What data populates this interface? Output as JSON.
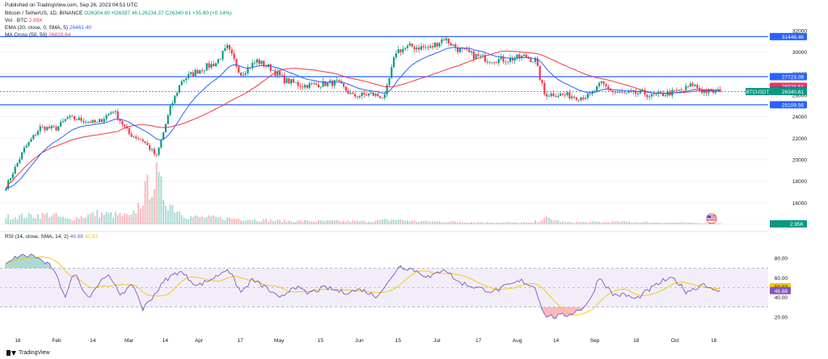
{
  "header": {
    "published": "Published on TradingView.com, Sep 26, 2023 04:51 UTC",
    "symbol": "Bitcoin / TetherUS, 1D, BINANCE",
    "ohlc": "O26304.80 H26397.46 L26234.37 C26340.61 +35.80 (+0.14%)",
    "vol_label": "Vol · BTC",
    "vol_value": "2.95K",
    "ema_label": "EMA (20, close, 0, SMA, 5)",
    "ema_value": "26461.40",
    "ma_label": "MA Cross (50, 50)",
    "ma_value": "26828.64",
    "rsi_label": "RSI (14, close, SMA, 14, 2)",
    "rsi_value": "46.88",
    "rsi_sma_value": "50.83"
  },
  "footer": {
    "brand": "TradingView"
  },
  "colors": {
    "up": "#089981",
    "down": "#f23645",
    "ema": "#2962ff",
    "ma": "#f23645",
    "hline": "#2962ff",
    "rsi": "#7e57c2",
    "rsi_sma": "#f7c600",
    "rsi_band": "#7e57c2"
  },
  "chart_data": {
    "type": "candlestick",
    "price_ylim": [
      14000,
      32600
    ],
    "price_ticks": [
      14000,
      16000,
      18000,
      20000,
      22000,
      24000,
      26000,
      28000,
      30000,
      32000
    ],
    "horizontal_lines": [
      31446.46,
      27723.08,
      25109.56
    ],
    "price_labels": [
      {
        "text": "31446.46",
        "value": 31446.46,
        "color": "#2962ff"
      },
      {
        "text": "27723.08",
        "value": 27723.08,
        "color": "#2962ff"
      },
      {
        "text": "26828.64",
        "value": 26828.64,
        "color": "#f23645"
      },
      {
        "text": "26461.40",
        "value": 26461.4,
        "color": "#2962ff"
      },
      {
        "text": "26340.61",
        "value": 26340.61,
        "color": "#089981"
      },
      {
        "text": "25109.56",
        "value": 25109.56,
        "color": "#2962ff"
      }
    ],
    "symbol_tag": "BTCUSDT",
    "volume_tag": "2.95K",
    "x_ticks": [
      "16",
      "Feb",
      "14",
      "Mar",
      "14",
      "Apr",
      "17",
      "May",
      "15",
      "Jun",
      "15",
      "Jul",
      "17",
      "Aug",
      "14",
      "Sep",
      "18",
      "Oct",
      "16"
    ],
    "anchors": [
      [
        0,
        17500
      ],
      [
        8,
        21000
      ],
      [
        15,
        23000
      ],
      [
        22,
        22900
      ],
      [
        27,
        23900
      ],
      [
        33,
        23700
      ],
      [
        40,
        23400
      ],
      [
        47,
        24600
      ],
      [
        54,
        22400
      ],
      [
        60,
        21800
      ],
      [
        66,
        20300
      ],
      [
        72,
        24800
      ],
      [
        77,
        27400
      ],
      [
        85,
        28400
      ],
      [
        92,
        29000
      ],
      [
        97,
        30400
      ],
      [
        103,
        28000
      ],
      [
        110,
        29200
      ],
      [
        116,
        28500
      ],
      [
        122,
        27400
      ],
      [
        130,
        26900
      ],
      [
        137,
        27000
      ],
      [
        145,
        27200
      ],
      [
        152,
        25900
      ],
      [
        160,
        26100
      ],
      [
        166,
        25800
      ],
      [
        171,
        30100
      ],
      [
        177,
        30500
      ],
      [
        186,
        30400
      ],
      [
        192,
        31300
      ],
      [
        198,
        30300
      ],
      [
        205,
        29700
      ],
      [
        212,
        29300
      ],
      [
        220,
        29300
      ],
      [
        227,
        29600
      ],
      [
        232,
        29200
      ],
      [
        236,
        26100
      ],
      [
        240,
        26100
      ],
      [
        246,
        26000
      ],
      [
        251,
        25800
      ],
      [
        256,
        25950
      ],
      [
        261,
        27100
      ],
      [
        266,
        26300
      ],
      [
        272,
        26100
      ],
      [
        279,
        26200
      ],
      [
        283,
        25900
      ],
      [
        291,
        26200
      ],
      [
        297,
        26500
      ],
      [
        301,
        27000
      ],
      [
        305,
        26400
      ],
      [
        310,
        26300
      ],
      [
        313,
        26340
      ]
    ],
    "volume_anchors": [
      [
        0,
        0.15
      ],
      [
        20,
        0.2
      ],
      [
        27,
        0.1
      ],
      [
        40,
        0.22
      ],
      [
        52,
        0.18
      ],
      [
        55,
        0.15
      ],
      [
        59,
        0.45
      ],
      [
        62,
        0.75
      ],
      [
        66,
        0.95
      ],
      [
        70,
        0.5
      ],
      [
        75,
        0.3
      ],
      [
        80,
        0.15
      ],
      [
        100,
        0.12
      ],
      [
        120,
        0.07
      ],
      [
        160,
        0.06
      ],
      [
        170,
        0.1
      ],
      [
        180,
        0.06
      ],
      [
        200,
        0.05
      ],
      [
        230,
        0.03
      ],
      [
        237,
        0.12
      ],
      [
        245,
        0.04
      ],
      [
        270,
        0.05
      ],
      [
        300,
        0.03
      ],
      [
        313,
        0.02
      ]
    ],
    "rsi": {
      "ylim": [
        0,
        100
      ],
      "ticks": [
        20,
        40,
        60,
        80
      ],
      "upper_band": 70,
      "lower_band": 30,
      "mid": 50,
      "labels": [
        {
          "text": "50.83",
          "value": 50.83,
          "color": "#f7c600"
        },
        {
          "text": "46.88",
          "value": 46.88,
          "color": "#7e57c2"
        }
      ],
      "anchors": [
        [
          0,
          73
        ],
        [
          5,
          82
        ],
        [
          12,
          83
        ],
        [
          20,
          71
        ],
        [
          26,
          42
        ],
        [
          30,
          65
        ],
        [
          36,
          40
        ],
        [
          44,
          64
        ],
        [
          50,
          44
        ],
        [
          56,
          52
        ],
        [
          60,
          28
        ],
        [
          64,
          40
        ],
        [
          70,
          58
        ],
        [
          76,
          67
        ],
        [
          84,
          52
        ],
        [
          92,
          61
        ],
        [
          97,
          70
        ],
        [
          103,
          45
        ],
        [
          108,
          58
        ],
        [
          114,
          50
        ],
        [
          120,
          38
        ],
        [
          126,
          52
        ],
        [
          132,
          44
        ],
        [
          140,
          50
        ],
        [
          148,
          45
        ],
        [
          156,
          48
        ],
        [
          162,
          41
        ],
        [
          168,
          56
        ],
        [
          172,
          72
        ],
        [
          178,
          69
        ],
        [
          186,
          60
        ],
        [
          192,
          70
        ],
        [
          198,
          56
        ],
        [
          206,
          50
        ],
        [
          214,
          46
        ],
        [
          220,
          52
        ],
        [
          226,
          57
        ],
        [
          232,
          50
        ],
        [
          236,
          22
        ],
        [
          240,
          20
        ],
        [
          246,
          22
        ],
        [
          252,
          28
        ],
        [
          256,
          37
        ],
        [
          260,
          61
        ],
        [
          266,
          43
        ],
        [
          272,
          42
        ],
        [
          276,
          38
        ],
        [
          282,
          48
        ],
        [
          288,
          57
        ],
        [
          293,
          59
        ],
        [
          298,
          46
        ],
        [
          302,
          49
        ],
        [
          306,
          55
        ],
        [
          310,
          46
        ],
        [
          313,
          46.88
        ]
      ]
    }
  }
}
